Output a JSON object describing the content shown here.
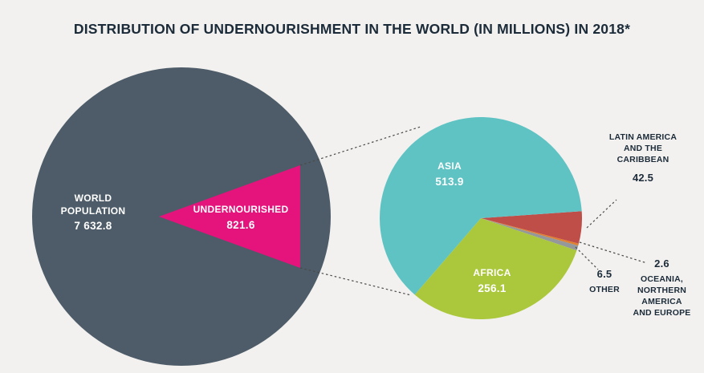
{
  "title": "DISTRIBUTION OF UNDERNOURISHMENT IN THE WORLD (IN MILLIONS) IN 2018*",
  "colors": {
    "background": "#f2f1ef",
    "title_text": "#1c2b39",
    "callout_text": "#1c2b39",
    "world_circle": "#4d5c68",
    "undernourished": "#e5137c",
    "asia": "#5fc3c4",
    "africa": "#abc83d",
    "latin_america": "#bf4e49",
    "oceania": "#e0802e",
    "other": "#95989a",
    "connector_line": "#4a4a4a"
  },
  "world": {
    "label": "WORLD\nPOPULATION",
    "value": "7 632.8"
  },
  "undernourished": {
    "label": "UNDERNOURISHED",
    "value": "821.6"
  },
  "labels": {
    "latin_america_display": "LATIN AMERICA\nAND THE\nCARIBBEAN",
    "other_display": "OTHER",
    "oceania_display": "OCEANIA,\nNORTHERN\nAMERICA\nAND EUROPE"
  },
  "chart_data": {
    "type": "pie",
    "title": "DISTRIBUTION OF UNDERNOURISHMENT IN THE WORLD (IN MILLIONS) IN 2018*",
    "units": "millions of people",
    "year": "2018",
    "total_world_population": 7632.8,
    "total_undernourished": 821.6,
    "start_angle_deg": -4,
    "direction": "clockwise",
    "slices": [
      {
        "label": "LATIN AMERICA AND THE CARIBBEAN",
        "value": 42.5,
        "color": "#bf4e49"
      },
      {
        "label": "OCEANIA, NORTHERN AMERICA AND EUROPE",
        "value": 2.6,
        "color": "#e0802e"
      },
      {
        "label": "OTHER",
        "value": 6.5,
        "color": "#95989a"
      },
      {
        "label": "AFRICA",
        "value": 256.1,
        "color": "#abc83d"
      },
      {
        "label": "ASIA",
        "value": 513.9,
        "color": "#5fc3c4"
      }
    ]
  }
}
